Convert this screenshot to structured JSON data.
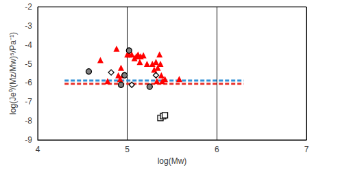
{
  "chart_data": {
    "type": "scatter",
    "xlabel": "log(Mw)",
    "ylabel": "log(Je⁰/(Mz/Mw)⁵/Pa⁻¹)",
    "xlim": [
      4,
      7
    ],
    "xticks": [
      4,
      5,
      6,
      7
    ],
    "ylim": [
      -9,
      -2
    ],
    "yticks": [
      -9,
      -8,
      -7,
      -6,
      -5,
      -4,
      -3,
      -2
    ],
    "grid": "x",
    "series": [
      {
        "type": "scatter",
        "marker": "triangle",
        "color": "#ff0000",
        "x": [
          4.7,
          4.78,
          4.88,
          4.9,
          4.92,
          4.93,
          4.95,
          5.0,
          5.02,
          5.05,
          5.08,
          5.1,
          5.12,
          5.14,
          5.15,
          5.18,
          5.22,
          5.28,
          5.3,
          5.32,
          5.33,
          5.34,
          5.36,
          5.37,
          5.38,
          5.39,
          5.42,
          5.58
        ],
        "values": [
          -4.8,
          -5.9,
          -4.2,
          -5.6,
          -5.8,
          -5.2,
          -5.6,
          -4.5,
          -4.5,
          -4.5,
          -4.7,
          -4.6,
          -4.5,
          -4.9,
          -4.6,
          -4.55,
          -5.0,
          -5.0,
          -5.3,
          -4.9,
          -5.9,
          -5.2,
          -4.5,
          -5.0,
          -5.6,
          -5.9,
          -5.8,
          -5.8
        ]
      },
      {
        "type": "scatter",
        "marker": "circle",
        "color": "#808080",
        "x": [
          4.57,
          4.93,
          4.97,
          5.02,
          5.25
        ],
        "values": [
          -5.4,
          -6.1,
          -5.6,
          -4.3,
          -6.2
        ]
      },
      {
        "type": "scatter",
        "marker": "diamond",
        "color": "#ffffff",
        "x": [
          4.82,
          5.05,
          5.32
        ],
        "values": [
          -5.45,
          -6.1,
          -5.6
        ]
      },
      {
        "type": "scatter",
        "marker": "square",
        "color": "#ffffff",
        "x": [
          5.37,
          5.4,
          5.42
        ],
        "values": [
          -7.85,
          -7.75,
          -7.7
        ]
      },
      {
        "type": "line",
        "line_style": "dashed",
        "color": "#2e8fd6",
        "x": [
          4.3,
          6.3
        ],
        "values": [
          -5.88,
          -5.88
        ]
      },
      {
        "type": "line",
        "line_style": "dashed",
        "color": "#e8302a",
        "x": [
          4.3,
          6.3
        ],
        "values": [
          -6.05,
          -6.05
        ]
      }
    ]
  }
}
